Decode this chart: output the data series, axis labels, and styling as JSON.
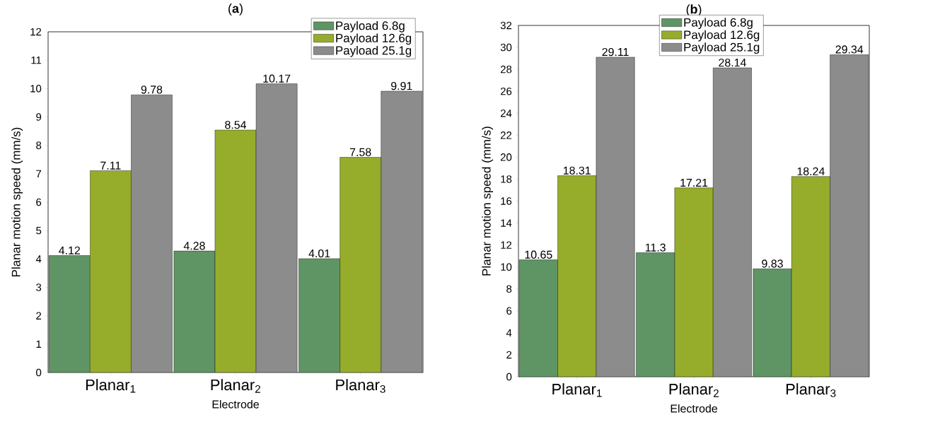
{
  "chart_data": [
    {
      "type": "bar",
      "title": "(**a**)",
      "xlabel": "Electrode",
      "ylabel": "Planar motion speed (mm/s)",
      "categories": [
        "Planar$_{1}$",
        "Planar$_{2}$",
        "Planar$_{3}$"
      ],
      "series": [
        {
          "name": "Payload 6.8g",
          "color": "#5f9564",
          "values": [
            4.12,
            4.28,
            4.01
          ]
        },
        {
          "name": "Payload 12.6g",
          "color": "#95ad2b",
          "values": [
            7.11,
            8.54,
            7.58
          ]
        },
        {
          "name": "Payload 25.1g",
          "color": "#8c8c8c",
          "values": [
            9.78,
            10.17,
            9.91
          ]
        }
      ],
      "ylim": [
        0,
        12
      ],
      "yticks": [
        0,
        1,
        2,
        3,
        4,
        5,
        6,
        7,
        8,
        9,
        10,
        11,
        12
      ],
      "data_labels": true,
      "legend": "top right"
    },
    {
      "type": "bar",
      "title": "(**b**)",
      "xlabel": "Electrode",
      "ylabel": "Planar motion speed (mm/s)",
      "categories": [
        "Planar$_{1}$",
        "Planar$_{2}$",
        "Planar$_{3}$"
      ],
      "series": [
        {
          "name": "Payload 6.8g",
          "color": "#5f9564",
          "values": [
            10.65,
            11.3,
            9.83
          ]
        },
        {
          "name": "Payload 12.6g",
          "color": "#95ad2b",
          "values": [
            18.31,
            17.21,
            18.24
          ]
        },
        {
          "name": "Payload 25.1g",
          "color": "#8c8c8c",
          "values": [
            29.11,
            28.14,
            29.34
          ]
        }
      ],
      "ylim": [
        0,
        32
      ],
      "yticks": [
        0,
        2,
        4,
        6,
        8,
        10,
        12,
        14,
        16,
        18,
        20,
        22,
        24,
        26,
        28,
        30,
        32
      ],
      "data_labels": true,
      "legend": "top"
    }
  ]
}
